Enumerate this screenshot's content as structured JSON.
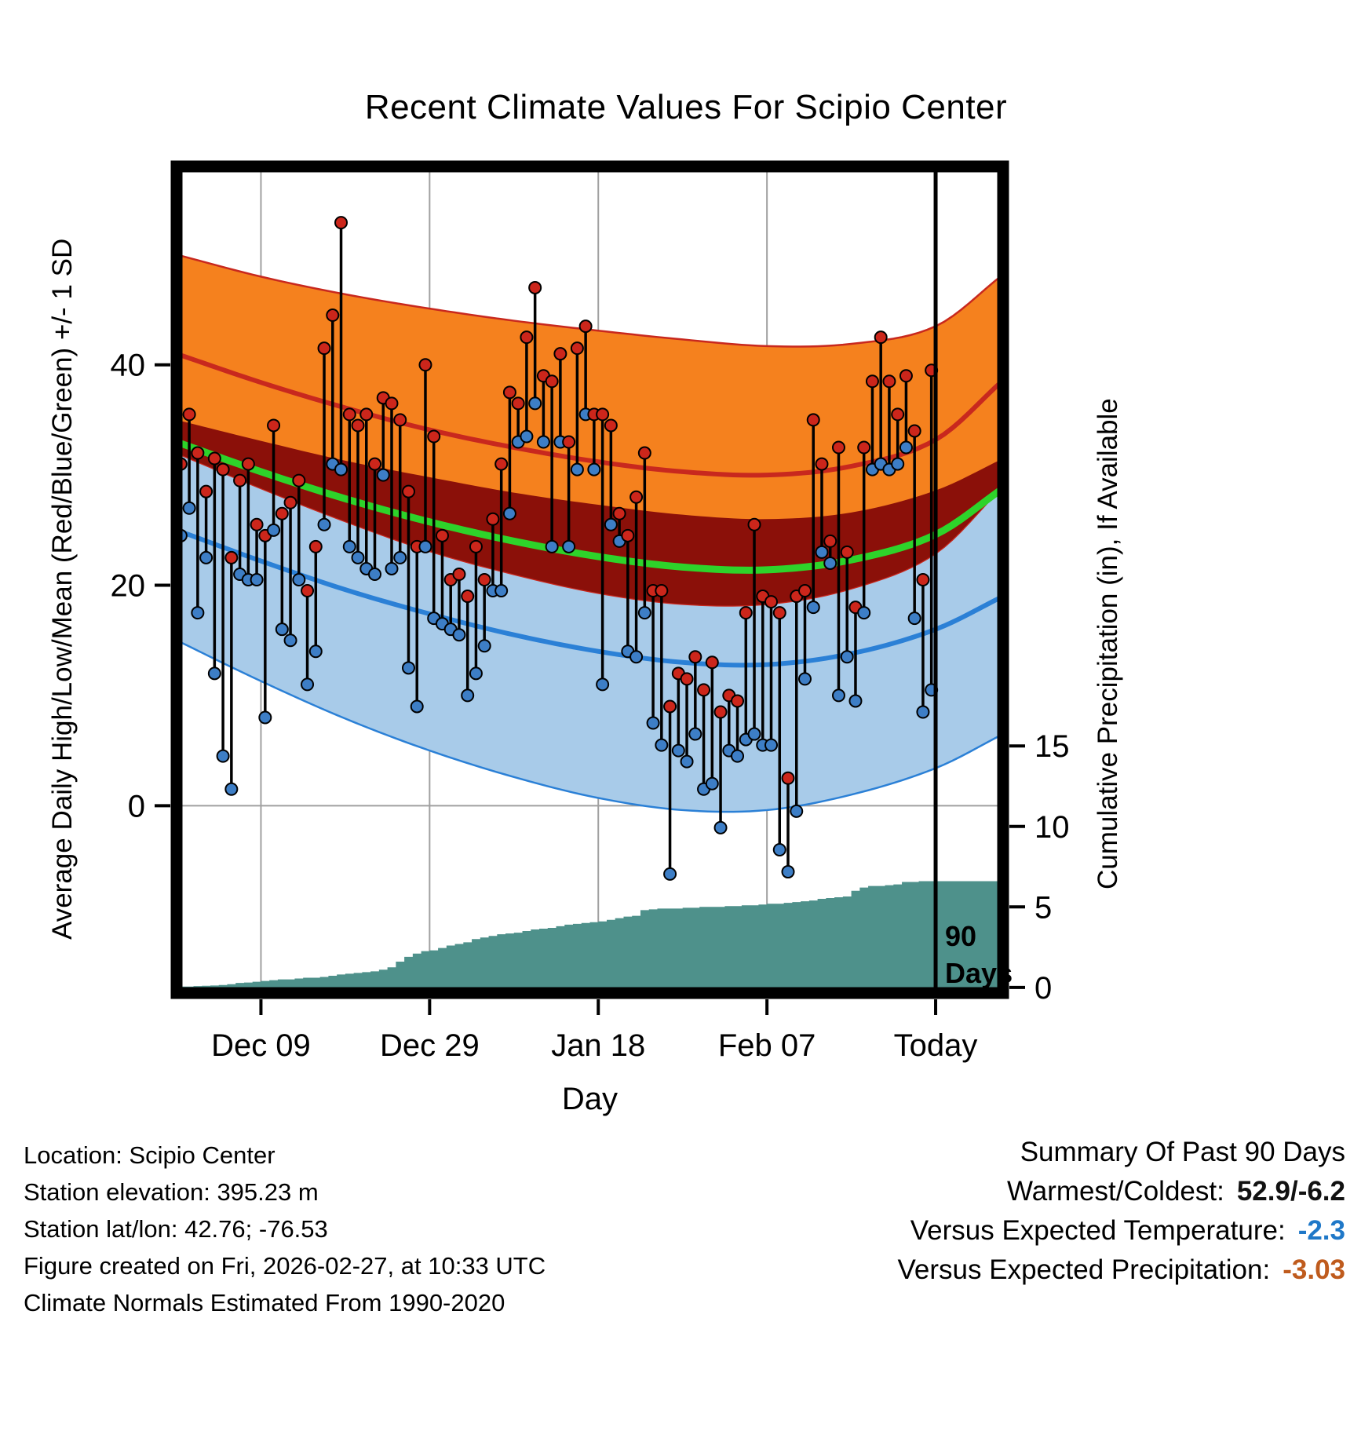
{
  "title": "Recent Climate Values For Scipio Center",
  "axes": {
    "left_label": "Average Daily High/Low/Mean (Red/Blue/Green) +/- 1 SD",
    "right_label": "Cumulative Precipitation (in), If Available",
    "x_label": "Day"
  },
  "footer": {
    "lines": [
      "Location: Scipio Center",
      "Station elevation: 395.23 m",
      "Station lat/lon: 42.76; -76.53",
      "Figure created on Fri, 2026-02-27, at 10:33 UTC",
      "Climate Normals Estimated From 1990-2020"
    ]
  },
  "summary": {
    "title": "Summary Of Past 90 Days",
    "rows": [
      {
        "label": "Warmest/Coldest:",
        "value": "52.9/-6.2",
        "color": "#111111"
      },
      {
        "label": "Versus Expected Temperature:",
        "value": "-2.3",
        "color": "#1F78C8"
      },
      {
        "label": "Versus Expected Precipitation:",
        "value": "-3.03",
        "color": "#BF5B1D"
      }
    ]
  },
  "chart_data": {
    "type": "climate-bands",
    "title": "Recent Climate Values For Scipio Center",
    "xlabel": "Day",
    "ylabel_left": "Average Daily High/Low/Mean (Red/Blue/Green) +/- 1 SD",
    "ylabel_right": "Cumulative Precipitation (in), If Available",
    "x_domain": [
      0,
      98
    ],
    "today_day": 90,
    "x_ticks": [
      {
        "day": 10,
        "label": "Dec 09"
      },
      {
        "day": 30,
        "label": "Dec 29"
      },
      {
        "day": 50,
        "label": "Jan 18"
      },
      {
        "day": 70,
        "label": "Feb 07"
      },
      {
        "day": 90,
        "label": "Today"
      }
    ],
    "temp_ylim": [
      -17,
      58
    ],
    "temp_ticks": [
      0,
      20,
      40
    ],
    "precip_ylim": [
      -0.35,
      51
    ],
    "precip_ticks": [
      0,
      5,
      10,
      15
    ],
    "normals": {
      "days": [
        0,
        10,
        20,
        30,
        40,
        50,
        60,
        70,
        80,
        90,
        98
      ],
      "high_mean": [
        41.0,
        38.4,
        36.1,
        34.1,
        32.5,
        31.2,
        30.3,
        30.0,
        30.8,
        33.2,
        38.6
      ],
      "high_sd": [
        9.0,
        9.6,
        10.3,
        11.0,
        11.5,
        11.9,
        12.0,
        11.7,
        11.1,
        10.3,
        9.6
      ],
      "low_mean": [
        25.0,
        22.2,
        19.6,
        17.4,
        15.5,
        14.0,
        13.0,
        12.8,
        13.8,
        16.0,
        19.0
      ],
      "low_sd": [
        10.0,
        10.9,
        11.7,
        12.4,
        12.9,
        13.3,
        13.4,
        13.2,
        12.8,
        12.6,
        12.5
      ]
    },
    "daily_obs": {
      "first_day": 0,
      "high_low_pairs": [
        [
          31,
          24.5
        ],
        [
          35.5,
          27
        ],
        [
          32,
          17.5
        ],
        [
          28.5,
          22.5
        ],
        [
          31.5,
          12
        ],
        [
          30.5,
          4.5
        ],
        [
          22.5,
          1.5
        ],
        [
          29.5,
          21
        ],
        [
          31,
          20.5
        ],
        [
          25.5,
          20.5
        ],
        [
          24.5,
          8
        ],
        [
          34.5,
          25
        ],
        [
          26.5,
          16
        ],
        [
          27.5,
          15
        ],
        [
          29.5,
          20.5
        ],
        [
          19.5,
          11
        ],
        [
          23.5,
          14
        ],
        [
          41.5,
          25.5
        ],
        [
          44.5,
          31
        ],
        [
          52.9,
          30.5
        ],
        [
          35.5,
          23.5
        ],
        [
          34.5,
          22.5
        ],
        [
          35.5,
          21.5
        ],
        [
          31,
          21
        ],
        [
          37,
          30
        ],
        [
          36.5,
          21.5
        ],
        [
          35,
          22.5
        ],
        [
          28.5,
          12.5
        ],
        [
          23.5,
          9
        ],
        [
          40,
          23.5
        ],
        [
          33.5,
          17
        ],
        [
          24.5,
          16.5
        ],
        [
          20.5,
          16
        ],
        [
          21,
          15.5
        ],
        [
          19,
          10
        ],
        [
          23.5,
          12
        ],
        [
          20.5,
          14.5
        ],
        [
          26,
          19.5
        ],
        [
          31,
          19.5
        ],
        [
          37.5,
          26.5
        ],
        [
          36.5,
          33
        ],
        [
          42.5,
          33.5
        ],
        [
          47,
          36.5
        ],
        [
          39,
          33
        ],
        [
          38.5,
          23.5
        ],
        [
          41,
          33
        ],
        [
          33,
          23.5
        ],
        [
          41.5,
          30.5
        ],
        [
          43.5,
          35.5
        ],
        [
          35.5,
          30.5
        ],
        [
          35.5,
          11
        ],
        [
          34.5,
          25.5
        ],
        [
          26.5,
          24
        ],
        [
          24.5,
          14
        ],
        [
          28,
          13.5
        ],
        [
          32,
          17.5
        ],
        [
          19.5,
          7.5
        ],
        [
          19.5,
          5.5
        ],
        [
          9,
          -6.2
        ],
        [
          12,
          5
        ],
        [
          11.5,
          4
        ],
        [
          13.5,
          6.5
        ],
        [
          10.5,
          1.5
        ],
        [
          13,
          2
        ],
        [
          8.5,
          -2
        ],
        [
          10,
          5
        ],
        [
          9.5,
          4.5
        ],
        [
          17.5,
          6
        ],
        [
          25.5,
          6.5
        ],
        [
          19,
          5.5
        ],
        [
          18.5,
          5.5
        ],
        [
          17.5,
          -4
        ],
        [
          2.5,
          -6.0
        ],
        [
          19,
          -0.5
        ],
        [
          19.5,
          11.5
        ],
        [
          35,
          18
        ],
        [
          31,
          23
        ],
        [
          24,
          22
        ],
        [
          32.5,
          10
        ],
        [
          23,
          13.5
        ],
        [
          18,
          9.5
        ],
        [
          32.5,
          17.5
        ],
        [
          38.5,
          30.5
        ],
        [
          42.5,
          31
        ],
        [
          38.5,
          30.5
        ],
        [
          35.5,
          31
        ],
        [
          39,
          32.5
        ],
        [
          34,
          17
        ],
        [
          20.5,
          8.5
        ],
        [
          39.5,
          10.5
        ]
      ]
    },
    "cumulative_precip": {
      "first_day": 0,
      "values": [
        0.05,
        0.05,
        0.08,
        0.1,
        0.12,
        0.15,
        0.2,
        0.28,
        0.3,
        0.35,
        0.4,
        0.45,
        0.5,
        0.5,
        0.55,
        0.6,
        0.6,
        0.65,
        0.72,
        0.8,
        0.85,
        0.9,
        0.95,
        1.0,
        1.1,
        1.25,
        1.6,
        1.9,
        2.1,
        2.25,
        2.3,
        2.45,
        2.6,
        2.7,
        2.8,
        3.0,
        3.1,
        3.2,
        3.3,
        3.35,
        3.4,
        3.5,
        3.6,
        3.65,
        3.7,
        3.8,
        3.9,
        3.95,
        4.0,
        4.05,
        4.1,
        4.2,
        4.3,
        4.4,
        4.45,
        4.8,
        4.85,
        4.9,
        4.9,
        4.9,
        4.95,
        4.95,
        5.0,
        5.0,
        5.0,
        5.05,
        5.05,
        5.1,
        5.1,
        5.15,
        5.2,
        5.2,
        5.25,
        5.3,
        5.35,
        5.4,
        5.5,
        5.55,
        5.6,
        5.65,
        6.0,
        6.2,
        6.3,
        6.3,
        6.35,
        6.4,
        6.55,
        6.55,
        6.6,
        6.6,
        6.6
      ]
    },
    "annotation": {
      "line1": "90",
      "line2": "Days"
    },
    "colors": {
      "high_band": "#F5811E",
      "high_line": "#C8281E",
      "overlap_band": "#8B1009",
      "mean_line": "#2ED32A",
      "low_band": "#A8CBE9",
      "low_line": "#2B80D6",
      "precip_fill": "#4E918B",
      "obs_high_dot": "#CC261B",
      "obs_low_dot": "#3D7EC6",
      "obs_line": "#000000",
      "grid": "#A0A0A0",
      "frame": "#000000"
    }
  }
}
